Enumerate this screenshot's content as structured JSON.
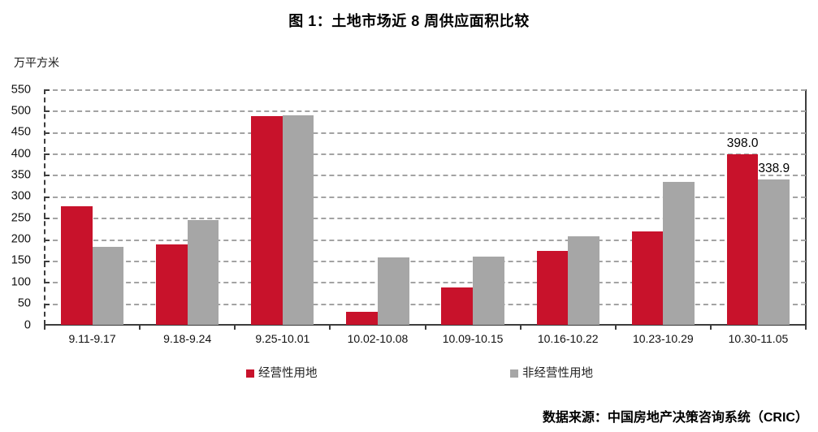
{
  "page": {
    "source": "数据来源：中国房地产决策咨询系统（CRIC）"
  },
  "chart_data": {
    "type": "bar",
    "title": "图 1：土地市场近 8 周供应面积比较",
    "unit_label": "万平方米",
    "categories": [
      "9.11-9.17",
      "9.18-9.24",
      "9.25-10.01",
      "10.02-10.08",
      "10.09-10.15",
      "10.16-10.22",
      "10.23-10.29",
      "10.30-11.05"
    ],
    "series": [
      {
        "name": "经营性用地",
        "color": "#C8122B",
        "values": [
          277,
          188,
          487,
          30,
          87,
          172,
          219,
          398.0
        ]
      },
      {
        "name": "非经营性用地",
        "color": "#A6A6A6",
        "values": [
          183,
          245,
          489,
          157,
          159,
          206,
          333,
          338.9
        ]
      }
    ],
    "data_labels": [
      {
        "series": 0,
        "category_index": 7,
        "text": "398.0"
      },
      {
        "series": 1,
        "category_index": 7,
        "text": "338.9"
      }
    ],
    "ylim": [
      0,
      550
    ],
    "ytick_step": 50,
    "grid": "dashed-horizontal",
    "legend_position": "bottom",
    "axis_color": "#3d3d3d",
    "grid_color": "#a3a3a3"
  }
}
